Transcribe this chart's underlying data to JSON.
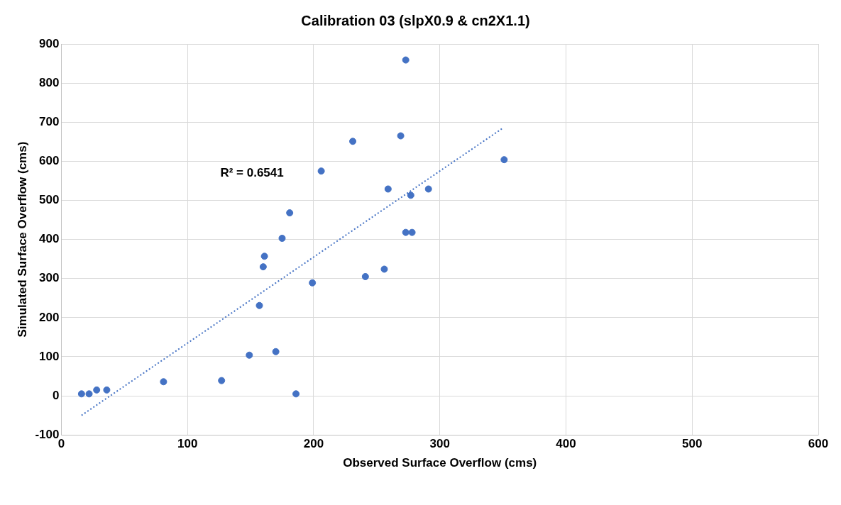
{
  "chart_data": {
    "type": "scatter",
    "title": "Calibration 03 (slpX0.9 & cn2X1.1)",
    "xlabel": "Observed Surface Overflow (cms)",
    "ylabel": "Simulated Surface Overflow (cms)",
    "xlim": [
      0,
      600
    ],
    "xticks": [
      0,
      100,
      200,
      300,
      400,
      500,
      600
    ],
    "ylim": [
      -100,
      900
    ],
    "yticks": [
      -100,
      0,
      100,
      200,
      300,
      400,
      500,
      600,
      700,
      800,
      900
    ],
    "grid": true,
    "legend": false,
    "marker": "circle",
    "annotations": [
      "R² = 0.6541"
    ],
    "series": [
      {
        "color": "#4472c4",
        "x": [
          16,
          22,
          28,
          36,
          81,
          127,
          149,
          170,
          186,
          157,
          160,
          161,
          175,
          181,
          199,
          206,
          231,
          241,
          256,
          259,
          269,
          273,
          273,
          278,
          277,
          291,
          351
        ],
        "values": [
          5,
          5,
          15,
          15,
          36,
          39,
          104,
          113,
          5,
          231,
          330,
          357,
          403,
          468,
          289,
          575,
          651,
          305,
          324,
          529,
          665,
          859,
          418,
          418,
          513,
          529,
          604
        ]
      },
      {
        "type": "line",
        "color": "#4472c4",
        "line_style": "dotted",
        "marker": "none",
        "x": [
          16,
          350
        ],
        "values": [
          -50,
          685
        ]
      }
    ]
  }
}
